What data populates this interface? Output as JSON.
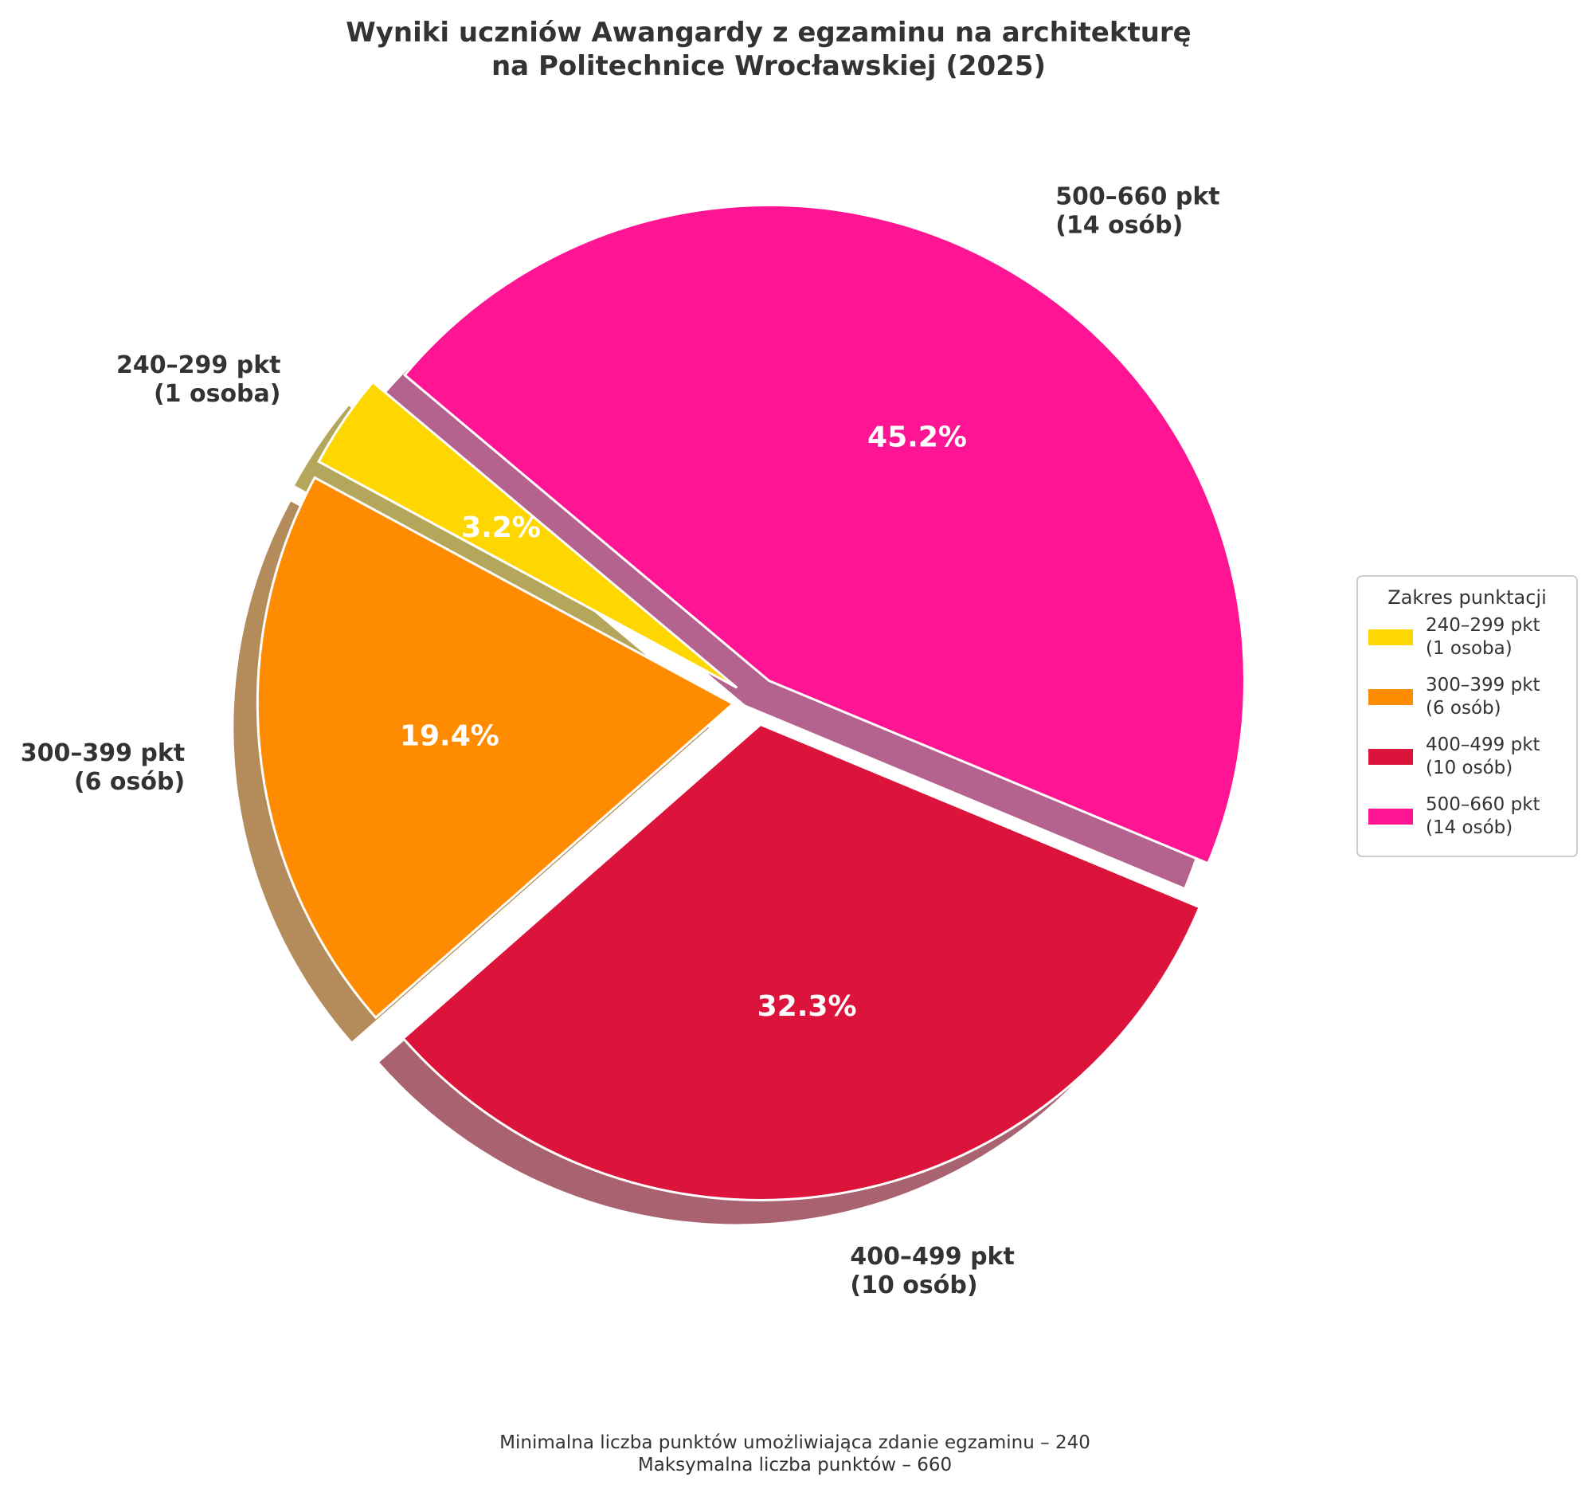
{
  "chart_data": {
    "type": "pie",
    "title": [
      "Wyniki uczniów Awangardy z egzaminu na architekturę",
      "na Politechnice Wrocławskiej (2025)"
    ],
    "slices": [
      {
        "range": "240–299 pkt",
        "count_label": "(1 osoba)",
        "count": 1,
        "percent": "3.2%",
        "color": "#FFD700"
      },
      {
        "range": "300–399 pkt",
        "count_label": "(6 osób)",
        "count": 6,
        "percent": "19.4%",
        "color": "#FF8C00"
      },
      {
        "range": "400–499 pkt",
        "count_label": "(10 osób)",
        "count": 10,
        "percent": "32.3%",
        "color": "#DC143C"
      },
      {
        "range": "500–660 pkt",
        "count_label": "(14 osób)",
        "count": 14,
        "percent": "45.2%",
        "color": "#FF1493"
      }
    ],
    "legend": {
      "title": "Zakres punktacji",
      "placement": "right"
    },
    "footnote": [
      "Minimalna liczba punktów umożliwiająca zdanie egzaminu – 240",
      "Maksymalna liczba punktów – 660"
    ],
    "shadow": true,
    "exploded": true
  }
}
